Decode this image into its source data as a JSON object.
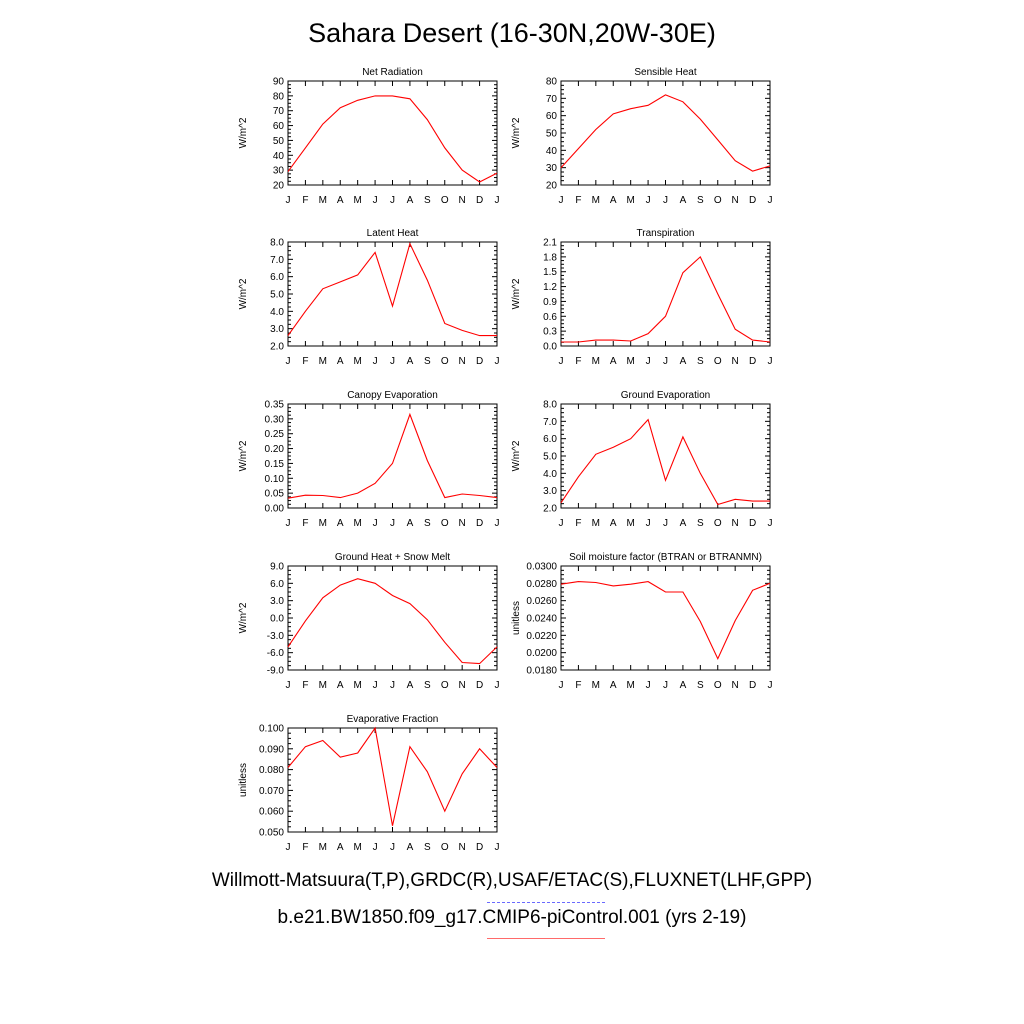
{
  "title": "Sahara Desert (16-30N,20W-30E)",
  "legend": {
    "observed_label": "Willmott-Matsuura(T,P),GRDC(R),USAF/ETAC(S),FLUXNET(LHF,GPP)",
    "model_label": "b.e21.BW1850.f09_g17.CMIP6-piControl.001 (yrs 2-19)",
    "observed_color": "#6a6aff",
    "model_color": "#ff0000"
  },
  "chart_data": [
    {
      "type": "line",
      "title": "Net Radiation",
      "ylabel": "W/m^2",
      "categories": [
        "J",
        "F",
        "M",
        "A",
        "M",
        "J",
        "J",
        "A",
        "S",
        "O",
        "N",
        "D",
        "J"
      ],
      "ylim": [
        20,
        90
      ],
      "yticks": [
        "20",
        "30",
        "40",
        "50",
        "60",
        "70",
        "80",
        "90"
      ],
      "values": [
        29,
        45,
        61,
        72,
        77,
        80,
        80,
        78,
        64,
        45,
        30,
        22,
        28
      ],
      "color": "#ff0000"
    },
    {
      "type": "line",
      "title": "Sensible Heat",
      "ylabel": "W/m^2",
      "categories": [
        "J",
        "F",
        "M",
        "A",
        "M",
        "J",
        "J",
        "A",
        "S",
        "O",
        "N",
        "D",
        "J"
      ],
      "ylim": [
        20,
        80
      ],
      "yticks": [
        "20",
        "30",
        "40",
        "50",
        "60",
        "70",
        "80"
      ],
      "values": [
        30,
        41,
        52,
        61,
        64,
        66,
        72,
        68,
        58,
        46,
        34,
        28,
        31
      ],
      "color": "#ff0000"
    },
    {
      "type": "line",
      "title": "Latent Heat",
      "ylabel": "W/m^2",
      "categories": [
        "J",
        "F",
        "M",
        "A",
        "M",
        "J",
        "J",
        "A",
        "S",
        "O",
        "N",
        "D",
        "J"
      ],
      "ylim": [
        2.0,
        8.0
      ],
      "yticks": [
        "2.0",
        "3.0",
        "4.0",
        "5.0",
        "6.0",
        "7.0",
        "8.0"
      ],
      "values": [
        2.6,
        4.0,
        5.3,
        5.7,
        6.1,
        7.4,
        4.3,
        7.9,
        5.8,
        3.3,
        2.9,
        2.6,
        2.6
      ],
      "color": "#ff0000"
    },
    {
      "type": "line",
      "title": "Transpiration",
      "ylabel": "W/m^2",
      "categories": [
        "J",
        "F",
        "M",
        "A",
        "M",
        "J",
        "J",
        "A",
        "S",
        "O",
        "N",
        "D",
        "J"
      ],
      "ylim": [
        0.0,
        2.1
      ],
      "yticks": [
        "0.0",
        "0.3",
        "0.6",
        "0.9",
        "1.2",
        "1.5",
        "1.8",
        "2.1"
      ],
      "values": [
        0.08,
        0.08,
        0.12,
        0.12,
        0.1,
        0.25,
        0.6,
        1.48,
        1.8,
        1.05,
        0.34,
        0.12,
        0.08
      ],
      "color": "#ff0000"
    },
    {
      "type": "line",
      "title": "Canopy Evaporation",
      "ylabel": "W/m^2",
      "categories": [
        "J",
        "F",
        "M",
        "A",
        "M",
        "J",
        "J",
        "A",
        "S",
        "O",
        "N",
        "D",
        "J"
      ],
      "ylim": [
        0.0,
        0.35
      ],
      "yticks": [
        "0.00",
        "0.05",
        "0.10",
        "0.15",
        "0.20",
        "0.25",
        "0.30",
        "0.35"
      ],
      "values": [
        0.033,
        0.043,
        0.042,
        0.035,
        0.05,
        0.083,
        0.15,
        0.315,
        0.16,
        0.035,
        0.047,
        0.042,
        0.035
      ],
      "color": "#ff0000"
    },
    {
      "type": "line",
      "title": "Ground Evaporation",
      "ylabel": "W/m^2",
      "categories": [
        "J",
        "F",
        "M",
        "A",
        "M",
        "J",
        "J",
        "A",
        "S",
        "O",
        "N",
        "D",
        "J"
      ],
      "ylim": [
        2.0,
        8.0
      ],
      "yticks": [
        "2.0",
        "3.0",
        "4.0",
        "5.0",
        "6.0",
        "7.0",
        "8.0"
      ],
      "values": [
        2.3,
        3.8,
        5.1,
        5.5,
        6.0,
        7.1,
        3.6,
        6.1,
        4.0,
        2.2,
        2.5,
        2.4,
        2.4
      ],
      "color": "#ff0000"
    },
    {
      "type": "line",
      "title": "Ground Heat + Snow Melt",
      "ylabel": "W/m^2",
      "categories": [
        "J",
        "F",
        "M",
        "A",
        "M",
        "J",
        "J",
        "A",
        "S",
        "O",
        "N",
        "D",
        "J"
      ],
      "ylim": [
        -9.0,
        9.0
      ],
      "yticks": [
        "-9.0",
        "-6.0",
        "-3.0",
        "0.0",
        "3.0",
        "6.0",
        "9.0"
      ],
      "values": [
        -5.0,
        -0.5,
        3.5,
        5.7,
        6.8,
        6.0,
        3.9,
        2.5,
        -0.3,
        -4.2,
        -7.7,
        -7.9,
        -5.0
      ],
      "color": "#ff0000"
    },
    {
      "type": "line",
      "title": "Soil moisture factor (BTRAN or BTRANMN)",
      "ylabel": "unitless",
      "categories": [
        "J",
        "F",
        "M",
        "A",
        "M",
        "J",
        "J",
        "A",
        "S",
        "O",
        "N",
        "D",
        "J"
      ],
      "ylim": [
        0.018,
        0.03
      ],
      "yticks": [
        "0.0180",
        "0.0200",
        "0.0220",
        "0.0240",
        "0.0260",
        "0.0280",
        "0.0300"
      ],
      "values": [
        0.0279,
        0.0282,
        0.0281,
        0.0277,
        0.0279,
        0.0282,
        0.027,
        0.027,
        0.0236,
        0.0193,
        0.0237,
        0.0272,
        0.028
      ],
      "color": "#ff0000"
    },
    {
      "type": "line",
      "title": "Evaporative Fraction",
      "ylabel": "unitless",
      "categories": [
        "J",
        "F",
        "M",
        "A",
        "M",
        "J",
        "J",
        "A",
        "S",
        "O",
        "N",
        "D",
        "J"
      ],
      "ylim": [
        0.05,
        0.1
      ],
      "yticks": [
        "0.050",
        "0.060",
        "0.070",
        "0.080",
        "0.090",
        "0.100"
      ],
      "values": [
        0.081,
        0.091,
        0.094,
        0.086,
        0.088,
        0.1,
        0.053,
        0.091,
        0.079,
        0.06,
        0.078,
        0.09,
        0.081
      ],
      "color": "#ff0000"
    }
  ]
}
